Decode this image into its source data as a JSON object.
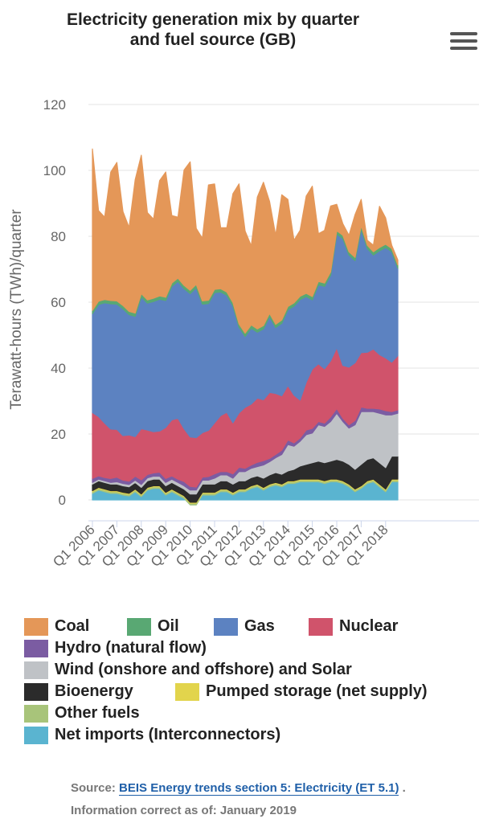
{
  "title_line1": "Electricity generation mix by quarter",
  "title_line2": "and fuel source (GB)",
  "source_prefix": "Source:",
  "source_link": "BEIS Energy trends section 5: Electricity (ET 5.1)",
  "source_suffix": ".",
  "info": "Information correct as of: January 2019",
  "chart_data": {
    "type": "area",
    "stacked": true,
    "ylabel": "Terawatt-hours (TWh)/quarter",
    "xlabel": "",
    "ylim": [
      0,
      120
    ],
    "yticks": [
      0,
      20,
      40,
      60,
      80,
      100,
      120
    ],
    "grid": true,
    "legend_position": "bottom",
    "xtick_labels": [
      "Q1 2006",
      "Q1 2007",
      "Q1 2008",
      "Q1 2009",
      "Q1 2010",
      "Q1 2011",
      "Q1 2012",
      "Q1 2013",
      "Q1 2014",
      "Q1 2015",
      "Q1 2016",
      "Q1 2017",
      "Q1 2018"
    ],
    "x": [
      "Q1 2006",
      "Q2 2006",
      "Q3 2006",
      "Q4 2006",
      "Q1 2007",
      "Q2 2007",
      "Q3 2007",
      "Q4 2007",
      "Q1 2008",
      "Q2 2008",
      "Q3 2008",
      "Q4 2008",
      "Q1 2009",
      "Q2 2009",
      "Q3 2009",
      "Q4 2009",
      "Q1 2010",
      "Q2 2010",
      "Q3 2010",
      "Q4 2010",
      "Q1 2011",
      "Q2 2011",
      "Q3 2011",
      "Q4 2011",
      "Q1 2012",
      "Q2 2012",
      "Q3 2012",
      "Q4 2012",
      "Q1 2013",
      "Q2 2013",
      "Q3 2013",
      "Q4 2013",
      "Q1 2014",
      "Q2 2014",
      "Q3 2014",
      "Q4 2014",
      "Q1 2015",
      "Q2 2015",
      "Q3 2015",
      "Q4 2015",
      "Q1 2016",
      "Q2 2016",
      "Q3 2016",
      "Q4 2016",
      "Q1 2017",
      "Q2 2017",
      "Q3 2017",
      "Q4 2017",
      "Q1 2018",
      "Q2 2018",
      "Q3 2018"
    ],
    "series": [
      {
        "name": "Net imports (Interconnectors)",
        "color": "#5ab4d0",
        "values": [
          2.0,
          3.0,
          2.5,
          2.0,
          2.0,
          1.5,
          1.2,
          2.5,
          1.0,
          3.0,
          3.5,
          3.5,
          1.5,
          2.5,
          1.5,
          0.5,
          -1.5,
          -1.5,
          1.5,
          1.5,
          1.5,
          2.5,
          2.5,
          1.5,
          2.5,
          2.5,
          3.5,
          4.0,
          3.0,
          4.0,
          4.5,
          4.0,
          5.0,
          5.0,
          5.5,
          5.5,
          5.5,
          5.5,
          5.0,
          5.5,
          5.5,
          5.0,
          4.0,
          2.5,
          3.5,
          5.0,
          5.5,
          4.0,
          2.5,
          5.5,
          5.5
        ]
      },
      {
        "name": "Other fuels",
        "color": "#a8c47a",
        "values": [
          0.5,
          0.5,
          0.5,
          0.5,
          0.5,
          0.5,
          0.5,
          0.5,
          0.5,
          0.5,
          0.5,
          0.5,
          0.5,
          0.5,
          0.5,
          0.5,
          0.5,
          0.5,
          0.5,
          0.5,
          0.5,
          0.5,
          0.5,
          0.5,
          0.5,
          0.5,
          0.5,
          0.5,
          0.5,
          0.5,
          0.5,
          0.5,
          0.5,
          0.5,
          0.5,
          0.5,
          0.5,
          0.5,
          0.5,
          0.5,
          0.5,
          0.5,
          0.5,
          0.5,
          0.5,
          0.5,
          0.5,
          0.5,
          0.5,
          0.5,
          0.5
        ]
      },
      {
        "name": "Pumped storage (net supply)",
        "color": "#e2d44c",
        "values": [
          0.3,
          0.3,
          0.3,
          0.3,
          0.3,
          0.3,
          0.3,
          0.3,
          0.3,
          0.3,
          0.3,
          0.3,
          0.3,
          0.3,
          0.3,
          0.3,
          0.3,
          0.3,
          0.3,
          0.3,
          0.3,
          0.3,
          0.3,
          0.3,
          0.3,
          0.3,
          0.3,
          0.3,
          0.3,
          0.3,
          0.3,
          0.3,
          0.3,
          0.3,
          0.3,
          0.3,
          0.3,
          0.3,
          0.3,
          0.3,
          0.3,
          0.3,
          0.3,
          0.3,
          0.3,
          0.3,
          0.3,
          0.3,
          0.3,
          0.3,
          0.3
        ]
      },
      {
        "name": "Bioenergy",
        "color": "#2b2b2b",
        "values": [
          2.0,
          2.0,
          2.0,
          2.0,
          2.0,
          2.0,
          2.0,
          2.0,
          2.0,
          2.0,
          2.0,
          2.0,
          2.0,
          2.0,
          2.0,
          2.0,
          2.5,
          2.5,
          2.5,
          2.5,
          2.5,
          2.5,
          2.5,
          2.5,
          2.5,
          2.5,
          2.5,
          2.5,
          2.8,
          2.8,
          3.0,
          3.0,
          3.0,
          3.5,
          4.0,
          4.5,
          5.0,
          5.5,
          5.5,
          5.5,
          6.0,
          6.0,
          6.0,
          6.0,
          6.5,
          6.5,
          6.5,
          6.5,
          6.5,
          7.0,
          7.0
        ]
      },
      {
        "name": "Wind (onshore and offshore) and Solar",
        "color": "#bfc2c6",
        "values": [
          0.5,
          0.5,
          0.5,
          0.5,
          0.7,
          0.7,
          0.7,
          0.7,
          0.9,
          0.9,
          0.9,
          0.9,
          1.0,
          1.0,
          1.0,
          1.0,
          1.2,
          1.2,
          1.2,
          1.2,
          1.8,
          1.8,
          1.8,
          1.8,
          2.8,
          2.8,
          2.8,
          2.8,
          4.0,
          4.0,
          4.5,
          6.0,
          8.0,
          7.0,
          7.5,
          9.0,
          9.0,
          11.0,
          11.0,
          12.0,
          14.0,
          12.0,
          11.0,
          13.5,
          16.0,
          14.5,
          14.0,
          15.0,
          16.0,
          12.5,
          13.0
        ]
      },
      {
        "name": "Hydro (natural flow)",
        "color": "#7b5ca2",
        "values": [
          1.2,
          1.0,
          1.0,
          1.2,
          1.4,
          1.0,
          1.0,
          1.2,
          1.4,
          1.0,
          1.0,
          1.2,
          1.2,
          1.0,
          1.0,
          1.3,
          1.1,
          0.9,
          0.9,
          1.1,
          1.3,
          1.0,
          1.0,
          1.3,
          1.3,
          1.0,
          1.0,
          1.3,
          1.3,
          1.0,
          1.0,
          1.3,
          1.4,
          1.0,
          1.0,
          1.4,
          1.4,
          1.0,
          1.0,
          1.4,
          1.4,
          1.0,
          1.0,
          1.3,
          1.4,
          1.0,
          1.0,
          1.3,
          1.3,
          1.0,
          1.0
        ]
      },
      {
        "name": "Nuclear",
        "color": "#d0536b",
        "values": [
          20.0,
          18.0,
          16.5,
          15.0,
          14.5,
          13.5,
          14.0,
          12.0,
          15.5,
          13.5,
          12.5,
          12.5,
          15.5,
          17.0,
          18.5,
          16.0,
          15.0,
          15.0,
          13.5,
          14.0,
          15.5,
          17.0,
          18.0,
          15.5,
          16.5,
          18.5,
          18.5,
          19.5,
          18.5,
          20.0,
          18.5,
          16.5,
          16.5,
          14.5,
          11.5,
          14.5,
          18.0,
          17.5,
          16.5,
          17.0,
          18.5,
          16.0,
          17.5,
          17.5,
          16.5,
          17.0,
          18.0,
          16.5,
          16.0,
          15.0,
          16.5
        ]
      },
      {
        "name": "Gas",
        "color": "#5c82c1",
        "values": [
          30.0,
          34.0,
          36.5,
          38.0,
          38.0,
          38.5,
          36.5,
          36.5,
          40.0,
          38.5,
          39.5,
          40.0,
          38.5,
          40.5,
          41.5,
          42.5,
          43.5,
          45.5,
          39.0,
          38.5,
          39.5,
          37.5,
          35.5,
          35.5,
          26.0,
          21.5,
          23.0,
          20.0,
          21.5,
          23.0,
          20.0,
          22.0,
          23.0,
          27.0,
          30.5,
          26.0,
          21.0,
          24.0,
          25.0,
          26.0,
          34.5,
          38.5,
          34.0,
          31.0,
          37.5,
          31.5,
          28.5,
          31.5,
          33.5,
          33.5,
          26.5
        ]
      },
      {
        "name": "Oil",
        "color": "#59a873",
        "values": [
          1.0,
          1.0,
          1.0,
          1.0,
          1.0,
          1.0,
          1.0,
          1.0,
          1.0,
          1.0,
          1.0,
          1.0,
          1.0,
          1.0,
          1.0,
          1.0,
          1.0,
          1.0,
          1.0,
          1.0,
          1.0,
          1.0,
          1.0,
          1.0,
          1.0,
          1.0,
          1.0,
          1.0,
          1.0,
          1.0,
          1.0,
          1.0,
          1.0,
          1.0,
          1.0,
          1.0,
          1.0,
          1.0,
          1.0,
          1.0,
          1.0,
          1.0,
          1.0,
          1.0,
          1.0,
          1.0,
          1.0,
          1.0,
          1.0,
          1.0,
          1.0
        ]
      },
      {
        "name": "Coal",
        "color": "#e49758",
        "values": [
          49.0,
          27.5,
          25.0,
          39.0,
          42.0,
          28.5,
          25.5,
          40.5,
          42.0,
          26.5,
          24.0,
          35.0,
          38.0,
          20.5,
          18.5,
          35.0,
          39.0,
          17.0,
          19.0,
          35.0,
          32.0,
          18.5,
          19.5,
          33.0,
          42.5,
          31.0,
          24.0,
          40.0,
          43.5,
          34.0,
          27.0,
          38.0,
          32.5,
          19.0,
          20.0,
          29.5,
          33.5,
          14.5,
          16.0,
          20.0,
          8.0,
          3.5,
          5.0,
          13.0,
          8.0,
          1.5,
          2.0,
          12.5,
          8.0,
          1.0,
          1.5
        ]
      }
    ]
  },
  "legend": {
    "items": [
      {
        "label": "Coal",
        "color": "#e49758"
      },
      {
        "label": "Oil",
        "color": "#59a873"
      },
      {
        "label": "Gas",
        "color": "#5c82c1"
      },
      {
        "label": "Nuclear",
        "color": "#d0536b"
      },
      {
        "label": "Hydro (natural flow)",
        "color": "#7b5ca2"
      },
      {
        "label": "Wind (onshore and offshore) and Solar",
        "color": "#bfc2c6"
      },
      {
        "label": "Bioenergy",
        "color": "#2b2b2b"
      },
      {
        "label": "Pumped storage (net supply)",
        "color": "#e2d44c"
      },
      {
        "label": "Other fuels",
        "color": "#a8c47a"
      },
      {
        "label": "Net imports (Interconnectors)",
        "color": "#5ab4d0"
      }
    ]
  }
}
